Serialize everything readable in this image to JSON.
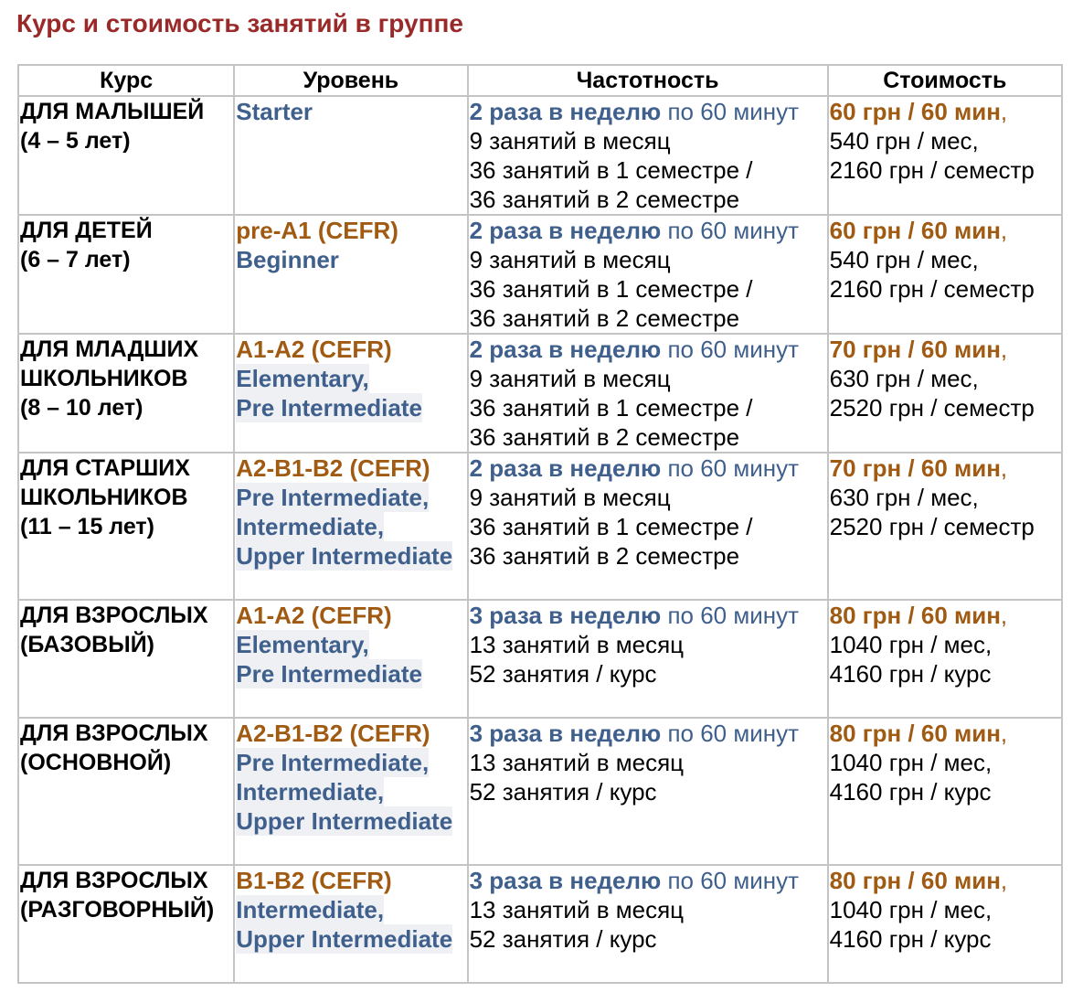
{
  "title": "Курс и стоимость занятий в группе",
  "headers": {
    "course": "Курс",
    "level": "Уровень",
    "frequency": "Частотность",
    "price": "Стоимость"
  },
  "rows": [
    {
      "course": [
        "ДЛЯ МАЛЫШЕЙ",
        "(4 – 5 лет)"
      ],
      "level_cefr": "",
      "level_names": [
        "Starter"
      ],
      "freq_bold": "2 раза в неделю",
      "freq_duration": " по 60 минут",
      "freq_lines": [
        "9 занятий в месяц",
        "36 занятий в 1 семестре /",
        "36 занятий в 2 семестре"
      ],
      "price_main": "60 грн / 60 мин",
      "price_lines": [
        "540 грн / мес,",
        "2160 грн / семестр"
      ]
    },
    {
      "course": [
        "ДЛЯ ДЕТЕЙ",
        "(6 – 7 лет)"
      ],
      "level_cefr": "pre-A1 (CEFR)",
      "level_names": [
        "Beginner"
      ],
      "freq_bold": "2 раза в неделю",
      "freq_duration": " по 60 минут",
      "freq_lines": [
        "9 занятий в месяц",
        "36 занятий в 1 семестре /",
        "36 занятий в 2 семестре"
      ],
      "price_main": "60 грн / 60 мин",
      "price_lines": [
        "540 грн / мес,",
        "2160 грн / семестр"
      ]
    },
    {
      "course": [
        "ДЛЯ МЛАДШИХ",
        "ШКОЛЬНИКОВ",
        "(8 – 10 лет)"
      ],
      "level_cefr": "A1-A2 (CEFR)",
      "level_names": [
        "Elementary,",
        "Pre Intermediate"
      ],
      "freq_bold": "2 раза в неделю",
      "freq_duration": " по 60 минут",
      "freq_lines": [
        "9 занятий в месяц",
        "36 занятий в 1 семестре /",
        "36 занятий в 2 семестре"
      ],
      "price_main": "70 грн / 60 мин",
      "price_lines": [
        "630 грн / мес,",
        "2520 грн / семестр"
      ]
    },
    {
      "course": [
        "ДЛЯ СТАРШИХ",
        "ШКОЛЬНИКОВ",
        "(11 – 15 лет)"
      ],
      "level_cefr": "A2-B1-B2 (CEFR)",
      "level_names": [
        "Pre Intermediate,",
        "Intermediate,",
        "Upper Intermediate"
      ],
      "freq_bold": "2 раза в неделю",
      "freq_duration": " по 60 минут",
      "freq_lines": [
        "9 занятий в месяц",
        "36 занятий в 1 семестре /",
        "36 занятий в 2 семестре"
      ],
      "price_main": "70 грн / 60 мин",
      "price_lines": [
        "630 грн / мес,",
        "2520 грн / семестр"
      ]
    },
    {
      "course": [
        "ДЛЯ ВЗРОСЛЫХ",
        "(БАЗОВЫЙ)"
      ],
      "level_cefr": "A1-A2 (CEFR)",
      "level_names": [
        "Elementary,",
        "Pre Intermediate"
      ],
      "freq_bold": "3 раза в неделю",
      "freq_duration": " по 60 минут",
      "freq_lines": [
        "13 занятий в месяц",
        "52 занятия / курс"
      ],
      "price_main": "80 грн / 60 мин",
      "price_lines": [
        "1040 грн / мес,",
        "4160 грн / курс"
      ]
    },
    {
      "course": [
        "ДЛЯ ВЗРОСЛЫХ",
        "(ОСНОВНОЙ)"
      ],
      "level_cefr": "A2-B1-B2 (CEFR)",
      "level_names": [
        "Pre Intermediate,",
        "Intermediate,",
        "Upper Intermediate"
      ],
      "freq_bold": "3 раза в неделю",
      "freq_duration": " по 60 минут",
      "freq_lines": [
        "13 занятий в месяц",
        "52 занятия / курс"
      ],
      "price_main": "80 грн / 60 мин",
      "price_lines": [
        "1040 грн / мес,",
        "4160 грн / курс"
      ]
    },
    {
      "course": [
        "ДЛЯ ВЗРОСЛЫХ",
        "(РАЗГОВОРНЫЙ)"
      ],
      "level_cefr": "B1-B2 (CEFR)",
      "level_names": [
        "Intermediate,",
        "Upper Intermediate"
      ],
      "freq_bold": "3 раза в неделю",
      "freq_duration": " по 60 минут",
      "freq_lines": [
        "13 занятий в месяц",
        "52 занятия / курс"
      ],
      "price_main": "80 грн / 60 мин",
      "price_lines": [
        "1040 грн / мес,",
        "4160 грн / курс"
      ]
    }
  ]
}
